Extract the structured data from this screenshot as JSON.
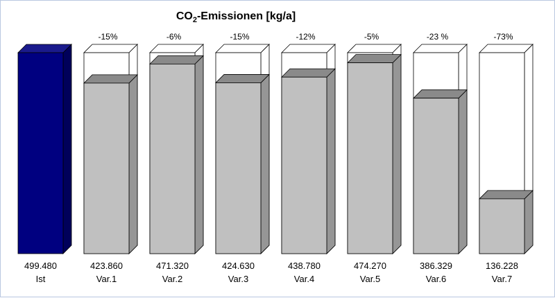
{
  "chart_data": {
    "type": "bar",
    "title_main": "CO",
    "title_sub": "2",
    "title_rest": "-Emissionen  [kg/a]",
    "categories": [
      "Ist",
      "Var.1",
      "Var.2",
      "Var.3",
      "Var.4",
      "Var.5",
      "Var.6",
      "Var.7"
    ],
    "values": [
      499480,
      423860,
      471320,
      424630,
      438780,
      474270,
      386329,
      136228
    ],
    "value_labels": [
      "499.480",
      "423.860",
      "471.320",
      "424.630",
      "438.780",
      "474.270",
      "386.329",
      "136.228"
    ],
    "reduction_labels": [
      "",
      "-15%",
      "-6%",
      "-15%",
      "-12%",
      "-5%",
      "-23 %",
      "-73%"
    ],
    "reference_value": 499480,
    "ylim": [
      0,
      499480
    ],
    "colors": {
      "reference_front": "#000080",
      "reference_top": "#1a1a8c",
      "reference_side": "#00005a",
      "bar_front": "#c0c0c0",
      "bar_top": "#8a8a8a",
      "bar_side": "#969696",
      "outline": "#000000"
    }
  }
}
